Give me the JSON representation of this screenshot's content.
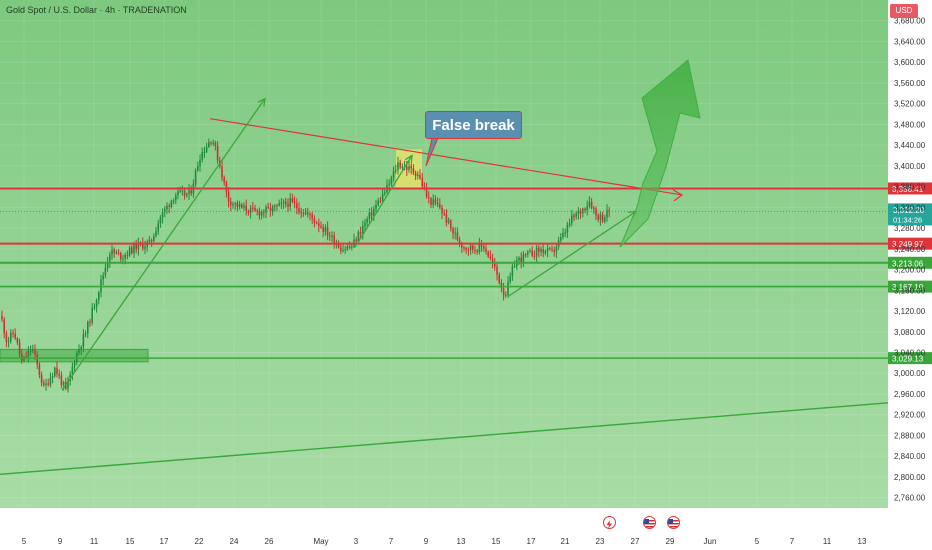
{
  "header": {
    "symbol_line": "Gold Spot / U.S. Dollar · 4h · TRADENATION",
    "currency": "USD"
  },
  "annotation": {
    "false_break": "False break"
  },
  "events": [
    {
      "icon": "lightning-icon"
    },
    {
      "icon": "us-flag-icon"
    },
    {
      "icon": "us-flag-icon"
    }
  ],
  "colors": {
    "background": "#89cf89",
    "up_candle": "#1e8c3c",
    "down_candle": "#d32f2f",
    "resistance": "#e0333a",
    "support": "#3aa63a",
    "trend": "#3aa63a",
    "price_tag": "#26a69a"
  },
  "chart_data": {
    "type": "candlestick",
    "y_axis": {
      "min": 2740,
      "max": 3720,
      "ticks": [
        3680,
        3640,
        3600,
        3560,
        3520,
        3480,
        3440,
        3400,
        3360,
        3320,
        3280,
        3240,
        3200,
        3160,
        3120,
        3080,
        3040,
        3000,
        2960,
        2920,
        2880,
        2840,
        2800,
        2760
      ],
      "tick_labels": [
        "3,680.00",
        "3,640.00",
        "3,600.00",
        "3,560.00",
        "3,520.00",
        "3,480.00",
        "3,440.00",
        "3,400.00",
        "3,360.00",
        "3,320.00",
        "3,280.00",
        "3,240.00",
        "3,200.00",
        "3,160.00",
        "3,120.00",
        "3,080.00",
        "3,040.00",
        "3,000.00",
        "2,960.00",
        "2,920.00",
        "2,880.00",
        "2,840.00",
        "2,800.00",
        "2,760.00"
      ]
    },
    "x_axis": {
      "labels": [
        {
          "label": "5",
          "t": 24
        },
        {
          "label": "9",
          "t": 60
        },
        {
          "label": "11",
          "t": 94
        },
        {
          "label": "15",
          "t": 130
        },
        {
          "label": "17",
          "t": 164
        },
        {
          "label": "22",
          "t": 199
        },
        {
          "label": "24",
          "t": 234
        },
        {
          "label": "26",
          "t": 269
        },
        {
          "label": "May",
          "t": 321
        },
        {
          "label": "3",
          "t": 356
        },
        {
          "label": "7",
          "t": 391
        },
        {
          "label": "9",
          "t": 426
        },
        {
          "label": "13",
          "t": 461
        },
        {
          "label": "15",
          "t": 496
        },
        {
          "label": "17",
          "t": 531
        },
        {
          "label": "21",
          "t": 565
        },
        {
          "label": "23",
          "t": 600
        },
        {
          "label": "27",
          "t": 635
        },
        {
          "label": "29",
          "t": 670
        },
        {
          "label": "Jun",
          "t": 710
        },
        {
          "label": "5",
          "t": 757
        },
        {
          "label": "7",
          "t": 792
        },
        {
          "label": "11",
          "t": 827
        },
        {
          "label": "13",
          "t": 862
        }
      ]
    },
    "price_levels": [
      {
        "price": 3356.41,
        "label": "3,356.41",
        "style": "resistance"
      },
      {
        "price": 3249.97,
        "label": "3,249.97",
        "style": "resistance"
      },
      {
        "price": 3213.06,
        "label": "3,213.06",
        "style": "support"
      },
      {
        "price": 3167.1,
        "label": "3,167.10",
        "style": "support"
      },
      {
        "price": 3029.13,
        "label": "3,029.13",
        "style": "support"
      }
    ],
    "current_price": {
      "price": 3312.2,
      "label": "3,312.20",
      "countdown": "01:34:26"
    },
    "anchors": [
      [
        1,
        3110
      ],
      [
        7,
        3060
      ],
      [
        14,
        3080
      ],
      [
        22,
        3020
      ],
      [
        32,
        3050
      ],
      [
        44,
        2970
      ],
      [
        55,
        3010
      ],
      [
        66,
        2965
      ],
      [
        75,
        3030
      ],
      [
        86,
        3080
      ],
      [
        97,
        3150
      ],
      [
        110,
        3235
      ],
      [
        122,
        3225
      ],
      [
        136,
        3245
      ],
      [
        150,
        3250
      ],
      [
        160,
        3300
      ],
      [
        175,
        3345
      ],
      [
        190,
        3345
      ],
      [
        200,
        3420
      ],
      [
        212,
        3455
      ],
      [
        220,
        3400
      ],
      [
        228,
        3335
      ],
      [
        240,
        3320
      ],
      [
        256,
        3310
      ],
      [
        270,
        3315
      ],
      [
        290,
        3330
      ],
      [
        305,
        3310
      ],
      [
        318,
        3290
      ],
      [
        330,
        3265
      ],
      [
        342,
        3240
      ],
      [
        352,
        3245
      ],
      [
        362,
        3280
      ],
      [
        375,
        3320
      ],
      [
        388,
        3360
      ],
      [
        398,
        3405
      ],
      [
        408,
        3395
      ],
      [
        418,
        3385
      ],
      [
        428,
        3335
      ],
      [
        440,
        3320
      ],
      [
        452,
        3275
      ],
      [
        463,
        3245
      ],
      [
        474,
        3240
      ],
      [
        484,
        3245
      ],
      [
        494,
        3205
      ],
      [
        505,
        3150
      ],
      [
        515,
        3215
      ],
      [
        528,
        3228
      ],
      [
        540,
        3238
      ],
      [
        552,
        3232
      ],
      [
        562,
        3262
      ],
      [
        572,
        3298
      ],
      [
        582,
        3315
      ],
      [
        590,
        3334
      ],
      [
        596,
        3305
      ],
      [
        603,
        3300
      ],
      [
        610,
        3315
      ]
    ]
  }
}
